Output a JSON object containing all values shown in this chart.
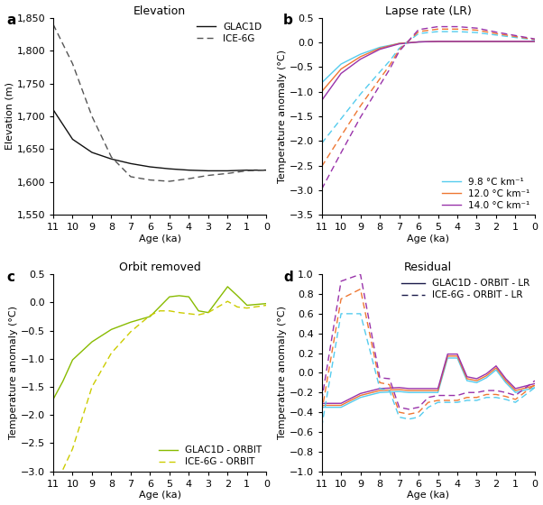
{
  "panel_a": {
    "title": "Elevation",
    "ylabel": "Elevation (m)",
    "xlabel": "Age (ka)",
    "xlim": [
      0,
      11
    ],
    "ylim": [
      1550,
      1850
    ],
    "yticks": [
      1550,
      1600,
      1650,
      1700,
      1750,
      1800,
      1850
    ],
    "xticks": [
      0,
      1,
      2,
      3,
      4,
      5,
      6,
      7,
      8,
      9,
      10,
      11
    ],
    "glac1d_x": [
      11,
      10,
      9,
      8,
      7,
      6,
      5,
      4,
      3,
      2,
      1,
      0
    ],
    "glac1d_y": [
      1710,
      1665,
      1645,
      1635,
      1628,
      1623,
      1620,
      1618,
      1617,
      1617,
      1618,
      1618
    ],
    "ice6g_x": [
      11,
      10,
      9,
      8,
      7,
      6,
      5,
      4,
      3,
      2,
      1,
      0
    ],
    "ice6g_y": [
      1840,
      1780,
      1700,
      1638,
      1608,
      1603,
      1601,
      1605,
      1610,
      1613,
      1617,
      1618
    ]
  },
  "panel_b": {
    "title": "Lapse rate (LR)",
    "ylabel": "Temperature anomaly (°C)",
    "xlabel": "Age (ka)",
    "xlim": [
      0,
      11
    ],
    "ylim": [
      -3.5,
      0.5
    ],
    "yticks": [
      -3.5,
      -3.0,
      -2.5,
      -2.0,
      -1.5,
      -1.0,
      -0.5,
      0.0,
      0.5
    ],
    "xticks": [
      0,
      1,
      2,
      3,
      4,
      5,
      6,
      7,
      8,
      9,
      10,
      11
    ],
    "glac1d_98_x": [
      11,
      10,
      9,
      8,
      7,
      6,
      5,
      4,
      3,
      2,
      1,
      0
    ],
    "glac1d_98_y": [
      -0.82,
      -0.44,
      -0.24,
      -0.1,
      -0.02,
      0.01,
      0.02,
      0.02,
      0.02,
      0.02,
      0.02,
      0.02
    ],
    "glac1d_120_x": [
      11,
      10,
      9,
      8,
      7,
      6,
      5,
      4,
      3,
      2,
      1,
      0
    ],
    "glac1d_120_y": [
      -1.0,
      -0.54,
      -0.29,
      -0.12,
      -0.02,
      0.01,
      0.02,
      0.02,
      0.02,
      0.02,
      0.02,
      0.02
    ],
    "glac1d_140_x": [
      11,
      10,
      9,
      8,
      7,
      6,
      5,
      4,
      3,
      2,
      1,
      0
    ],
    "glac1d_140_y": [
      -1.18,
      -0.63,
      -0.34,
      -0.14,
      -0.03,
      0.01,
      0.02,
      0.02,
      0.02,
      0.02,
      0.02,
      0.02
    ],
    "ice6g_98_x": [
      11,
      10,
      9,
      8,
      7.5,
      7,
      6,
      5,
      4,
      3,
      2,
      1,
      0
    ],
    "ice6g_98_y": [
      -2.05,
      -1.55,
      -1.05,
      -0.6,
      -0.38,
      -0.12,
      0.18,
      0.22,
      0.22,
      0.2,
      0.15,
      0.1,
      0.05
    ],
    "ice6g_120_x": [
      11,
      10,
      9,
      8,
      7.5,
      7,
      6,
      5,
      4,
      3,
      2,
      1,
      0
    ],
    "ice6g_120_y": [
      -2.52,
      -1.9,
      -1.29,
      -0.74,
      -0.47,
      -0.15,
      0.22,
      0.27,
      0.27,
      0.25,
      0.18,
      0.12,
      0.06
    ],
    "ice6g_140_x": [
      11,
      10,
      9,
      8,
      7.5,
      7,
      6,
      5,
      4,
      3,
      2,
      1,
      0
    ],
    "ice6g_140_y": [
      -2.98,
      -2.24,
      -1.52,
      -0.87,
      -0.55,
      -0.18,
      0.26,
      0.32,
      0.32,
      0.29,
      0.21,
      0.14,
      0.07
    ],
    "colors": {
      "9.8": "#55CCEE",
      "12.0": "#EE7733",
      "14.0": "#9933AA"
    },
    "legend_entries": [
      "9.8 °C km⁻¹",
      "12.0 °C km⁻¹",
      "14.0 °C km⁻¹"
    ]
  },
  "panel_c": {
    "title": "Orbit removed",
    "ylabel": "Temperature anomaly (°C)",
    "xlabel": "Age (ka)",
    "xlim": [
      0,
      11
    ],
    "ylim": [
      -3.0,
      0.5
    ],
    "yticks": [
      -3.0,
      -2.5,
      -2.0,
      -1.5,
      -1.0,
      -0.5,
      0.0,
      0.5
    ],
    "xticks": [
      0,
      1,
      2,
      3,
      4,
      5,
      6,
      7,
      8,
      9,
      10,
      11
    ],
    "glac1d_x": [
      11,
      10.5,
      10,
      9,
      8,
      7,
      6,
      5,
      4.5,
      4,
      3.5,
      3,
      2.5,
      2,
      1.5,
      1,
      0
    ],
    "glac1d_y": [
      -1.72,
      -1.4,
      -1.02,
      -0.7,
      -0.48,
      -0.35,
      -0.25,
      0.1,
      0.12,
      0.1,
      -0.15,
      -0.18,
      0.05,
      0.28,
      0.12,
      -0.05,
      -0.02
    ],
    "ice6g_x": [
      10.5,
      10,
      9,
      8,
      7,
      6,
      5.5,
      5,
      4.5,
      4,
      3.5,
      3,
      2.5,
      2,
      1.5,
      1,
      0
    ],
    "ice6g_y": [
      -2.97,
      -2.6,
      -1.5,
      -0.9,
      -0.52,
      -0.23,
      -0.15,
      -0.15,
      -0.18,
      -0.2,
      -0.22,
      -0.18,
      -0.08,
      0.02,
      -0.08,
      -0.1,
      -0.05
    ],
    "glac1d_color": "#88BB00",
    "ice6g_color": "#CCCC00",
    "legend_entries": [
      "GLAC1D - ORBIT",
      "ICE-6G - ORBIT"
    ]
  },
  "panel_d": {
    "title": "Residual",
    "ylabel": "Temperature anomaly (°C)",
    "xlabel": "Age (ka)",
    "xlim": [
      0,
      11
    ],
    "ylim": [
      -1.0,
      1.0
    ],
    "yticks": [
      -1.0,
      -0.8,
      -0.6,
      -0.4,
      -0.2,
      0.0,
      0.2,
      0.4,
      0.6,
      0.8,
      1.0
    ],
    "xticks": [
      0,
      1,
      2,
      3,
      4,
      5,
      6,
      7,
      8,
      9,
      10,
      11
    ],
    "glac1d_98_x": [
      11,
      10,
      9,
      8,
      7,
      6.5,
      6,
      5,
      4.5,
      4,
      3.5,
      3,
      2.5,
      2,
      1.5,
      1,
      0
    ],
    "glac1d_98_y": [
      -0.35,
      -0.35,
      -0.25,
      -0.2,
      -0.19,
      -0.2,
      -0.2,
      -0.2,
      0.15,
      0.15,
      -0.08,
      -0.1,
      -0.05,
      0.03,
      -0.1,
      -0.2,
      -0.15
    ],
    "glac1d_120_x": [
      11,
      10,
      9,
      8,
      7,
      6.5,
      6,
      5,
      4.5,
      4,
      3.5,
      3,
      2.5,
      2,
      1.5,
      1,
      0
    ],
    "glac1d_120_y": [
      -0.33,
      -0.33,
      -0.23,
      -0.18,
      -0.17,
      -0.18,
      -0.18,
      -0.18,
      0.17,
      0.17,
      -0.06,
      -0.08,
      -0.03,
      0.05,
      -0.08,
      -0.18,
      -0.13
    ],
    "glac1d_140_x": [
      11,
      10,
      9,
      8,
      7,
      6.5,
      6,
      5,
      4.5,
      4,
      3.5,
      3,
      2.5,
      2,
      1.5,
      1,
      0
    ],
    "glac1d_140_y": [
      -0.31,
      -0.31,
      -0.21,
      -0.16,
      -0.15,
      -0.16,
      -0.16,
      -0.16,
      0.19,
      0.19,
      -0.04,
      -0.06,
      -0.01,
      0.07,
      -0.06,
      -0.16,
      -0.11
    ],
    "ice6g_98_x": [
      11,
      10,
      9,
      8,
      7.5,
      7,
      6.5,
      6,
      5.5,
      5,
      4.5,
      4,
      3.5,
      3,
      2.5,
      2,
      1.5,
      1,
      0
    ],
    "ice6g_98_y": [
      -0.55,
      0.6,
      0.6,
      -0.16,
      -0.18,
      -0.45,
      -0.47,
      -0.45,
      -0.35,
      -0.3,
      -0.3,
      -0.3,
      -0.28,
      -0.28,
      -0.25,
      -0.25,
      -0.27,
      -0.3,
      -0.15
    ],
    "ice6g_120_x": [
      11,
      10,
      9,
      8,
      7.5,
      7,
      6.5,
      6,
      5.5,
      5,
      4.5,
      4,
      3.5,
      3,
      2.5,
      2,
      1.5,
      1,
      0
    ],
    "ice6g_120_y": [
      -0.4,
      0.75,
      0.85,
      -0.1,
      -0.12,
      -0.4,
      -0.42,
      -0.4,
      -0.3,
      -0.28,
      -0.28,
      -0.28,
      -0.25,
      -0.25,
      -0.22,
      -0.22,
      -0.24,
      -0.27,
      -0.12
    ],
    "ice6g_140_x": [
      11,
      10,
      9,
      8,
      7.5,
      7,
      6.5,
      6,
      5.5,
      5,
      4.5,
      4,
      3.5,
      3,
      2.5,
      2,
      1.5,
      1,
      0
    ],
    "ice6g_140_y": [
      -0.28,
      0.93,
      1.0,
      -0.05,
      -0.06,
      -0.35,
      -0.37,
      -0.35,
      -0.25,
      -0.23,
      -0.23,
      -0.23,
      -0.2,
      -0.2,
      -0.18,
      -0.18,
      -0.2,
      -0.23,
      -0.08
    ],
    "glac1d_colors": {
      "9.8": "#55CCEE",
      "12.0": "#EE7733",
      "14.0": "#9933AA"
    },
    "ice6g_colors": {
      "9.8": "#55CCEE",
      "12.0": "#EE7733",
      "14.0": "#9933AA"
    },
    "glac1d_legend_color": "#1A1A4A",
    "legend_entries": [
      "GLAC1D - ORBIT - LR",
      "ICE-6G - ORBIT - LR"
    ]
  },
  "figure": {
    "background": "#ffffff",
    "font_size": 8,
    "title_font_size": 9,
    "label_font_size": 8
  }
}
